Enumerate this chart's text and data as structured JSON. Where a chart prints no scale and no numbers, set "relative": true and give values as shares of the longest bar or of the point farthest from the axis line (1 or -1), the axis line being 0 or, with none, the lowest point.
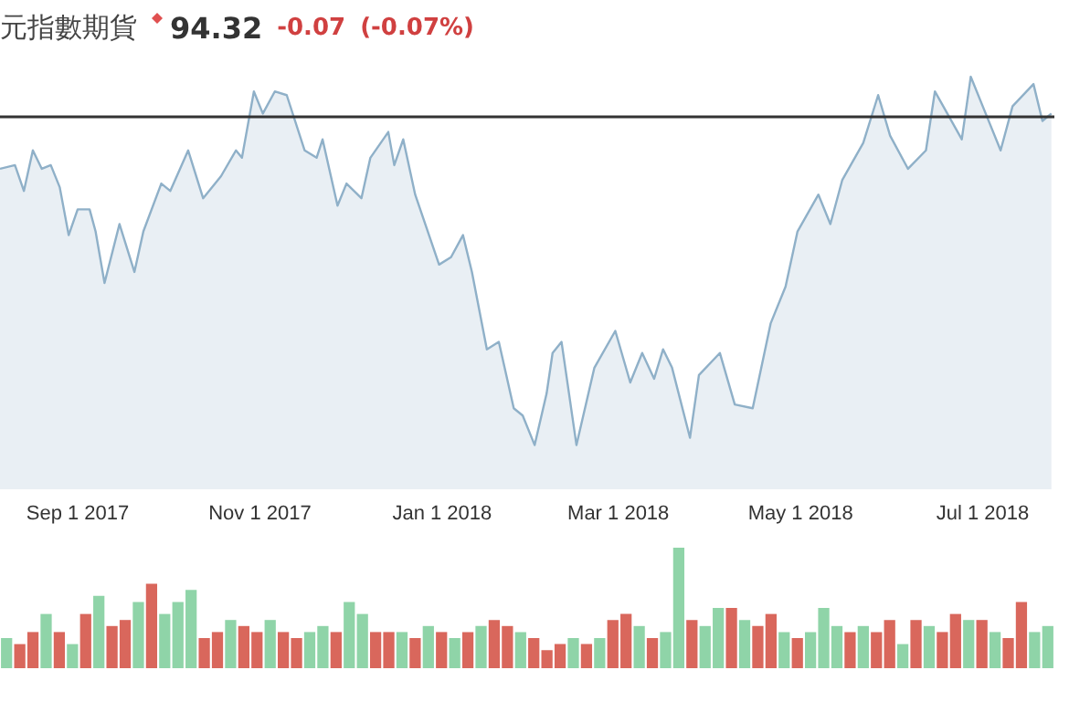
{
  "chart_data": [
    {
      "type": "area",
      "title": "元指數期貨",
      "annotations": [
        "94.32",
        "-0.07",
        "(-0.07%)"
      ],
      "relative": true,
      "color": "#8fb0c8",
      "x": [
        "2017-08-06",
        "2017-08-11",
        "2017-08-14",
        "2017-08-17",
        "2017-08-20",
        "2017-08-23",
        "2017-08-26",
        "2017-08-29",
        "2017-09-01",
        "2017-09-05",
        "2017-09-07",
        "2017-09-10",
        "2017-09-15",
        "2017-09-20",
        "2017-09-23",
        "2017-09-29",
        "2017-10-02",
        "2017-10-08",
        "2017-10-13",
        "2017-10-19",
        "2017-10-24",
        "2017-10-26",
        "2017-10-30",
        "2017-11-02",
        "2017-11-06",
        "2017-11-10",
        "2017-11-16",
        "2017-11-20",
        "2017-11-22",
        "2017-11-27",
        "2017-11-30",
        "2017-12-05",
        "2017-12-08",
        "2017-12-14",
        "2017-12-16",
        "2017-12-19",
        "2017-12-23",
        "2017-12-31",
        "2018-01-04",
        "2018-01-08",
        "2018-01-11",
        "2018-01-16",
        "2018-01-20",
        "2018-01-25",
        "2018-01-28",
        "2018-02-01",
        "2018-02-05",
        "2018-02-07",
        "2018-02-10",
        "2018-02-15",
        "2018-02-21",
        "2018-02-28",
        "2018-03-05",
        "2018-03-09",
        "2018-03-13",
        "2018-03-16",
        "2018-03-19",
        "2018-03-25",
        "2018-03-28",
        "2018-04-04",
        "2018-04-09",
        "2018-04-15",
        "2018-04-21",
        "2018-04-26",
        "2018-04-30",
        "2018-05-07",
        "2018-05-11",
        "2018-05-15",
        "2018-05-22",
        "2018-05-27",
        "2018-05-31",
        "2018-06-06",
        "2018-06-12",
        "2018-06-15",
        "2018-06-24",
        "2018-06-27",
        "2018-07-02",
        "2018-07-07",
        "2018-07-11",
        "2018-07-18",
        "2018-07-21",
        "2018-07-24"
      ],
      "values": [
        0.75,
        0.76,
        0.69,
        0.8,
        0.75,
        0.76,
        0.7,
        0.57,
        0.64,
        0.64,
        0.58,
        0.44,
        0.6,
        0.47,
        0.58,
        0.71,
        0.69,
        0.8,
        0.67,
        0.73,
        0.8,
        0.78,
        0.96,
        0.9,
        0.96,
        0.95,
        0.8,
        0.78,
        0.83,
        0.65,
        0.71,
        0.67,
        0.78,
        0.85,
        0.76,
        0.83,
        0.68,
        0.49,
        0.51,
        0.57,
        0.47,
        0.26,
        0.28,
        0.1,
        0.08,
        0,
        0.14,
        0.25,
        0.28,
        0,
        0.21,
        0.31,
        0.17,
        0.25,
        0.18,
        0.26,
        0.21,
        0.02,
        0.19,
        0.25,
        0.11,
        0.1,
        0.33,
        0.43,
        0.58,
        0.68,
        0.6,
        0.72,
        0.82,
        0.95,
        0.84,
        0.75,
        0.8,
        0.96,
        0.83,
        1,
        0.9,
        0.8,
        0.92,
        0.98,
        0.88,
        0.9
      ],
      "xlim": [
        "2017-08-06",
        "2018-07-25"
      ],
      "xticks": [
        {
          "value": "2017-09-01",
          "label": "Sep 1 2017"
        },
        {
          "value": "2017-11-01",
          "label": "Nov 1 2017"
        },
        {
          "value": "2018-01-01",
          "label": "Jan 1 2018"
        },
        {
          "value": "2018-03-01",
          "label": "Mar 1 2018"
        },
        {
          "value": "2018-05-01",
          "label": "May 1 2018"
        },
        {
          "value": "2018-07-01",
          "label": "Jul 1 2018"
        }
      ],
      "ref_lines": [
        {
          "axis": "y",
          "value": 0.89,
          "color": "#333333"
        }
      ]
    },
    {
      "type": "bar",
      "relative": true,
      "categories": [
        null,
        null,
        null,
        null,
        null,
        null,
        null,
        null,
        null,
        null,
        null,
        null,
        null,
        null,
        null,
        null,
        null,
        null,
        null,
        null,
        null,
        null,
        null,
        null,
        null,
        null,
        null,
        null,
        null,
        null,
        null,
        null,
        null,
        null,
        null,
        null,
        null,
        null,
        null,
        null,
        null,
        null,
        null,
        null,
        null,
        null,
        null,
        null,
        null,
        null,
        null,
        null,
        null,
        null,
        null,
        null,
        null,
        null,
        null,
        null,
        null,
        null,
        null,
        null,
        null,
        null,
        null,
        null,
        null,
        null,
        null,
        null,
        null,
        null,
        null,
        null,
        null,
        null,
        null,
        null
      ],
      "values": [
        0.25,
        0.2,
        0.3,
        0.45,
        0.3,
        0.2,
        0.45,
        0.6,
        0.35,
        0.4,
        0.55,
        0.7,
        0.45,
        0.55,
        0.65,
        0.25,
        0.3,
        0.4,
        0.35,
        0.3,
        0.4,
        0.3,
        0.25,
        0.3,
        0.35,
        0.3,
        0.55,
        0.45,
        0.3,
        0.3,
        0.3,
        0.25,
        0.35,
        0.3,
        0.25,
        0.3,
        0.35,
        0.4,
        0.35,
        0.3,
        0.25,
        0.15,
        0.2,
        0.25,
        0.2,
        0.25,
        0.4,
        0.45,
        0.35,
        0.25,
        0.3,
        1.0,
        0.4,
        0.35,
        0.5,
        0.5,
        0.4,
        0.35,
        0.45,
        0.3,
        0.25,
        0.3,
        0.5,
        0.35,
        0.3,
        0.35,
        0.3,
        0.4,
        0.2,
        0.4,
        0.35,
        0.3,
        0.45,
        0.4,
        0.4,
        0.3,
        0.25,
        0.55,
        0.3,
        0.35
      ],
      "colors": [
        "#8fd4a8",
        "#d9675c",
        "#d9675c",
        "#8fd4a8",
        "#d9675c",
        "#8fd4a8",
        "#d9675c",
        "#8fd4a8",
        "#d9675c",
        "#d9675c",
        "#8fd4a8",
        "#d9675c",
        "#8fd4a8",
        "#8fd4a8",
        "#8fd4a8",
        "#d9675c",
        "#d9675c",
        "#8fd4a8",
        "#d9675c",
        "#d9675c",
        "#8fd4a8",
        "#d9675c",
        "#d9675c",
        "#8fd4a8",
        "#8fd4a8",
        "#d9675c",
        "#8fd4a8",
        "#8fd4a8",
        "#d9675c",
        "#d9675c",
        "#8fd4a8",
        "#d9675c",
        "#8fd4a8",
        "#d9675c",
        "#8fd4a8",
        "#d9675c",
        "#8fd4a8",
        "#d9675c",
        "#d9675c",
        "#8fd4a8",
        "#d9675c",
        "#d9675c",
        "#d9675c",
        "#8fd4a8",
        "#d9675c",
        "#8fd4a8",
        "#d9675c",
        "#d9675c",
        "#8fd4a8",
        "#d9675c",
        "#8fd4a8",
        "#8fd4a8",
        "#d9675c",
        "#8fd4a8",
        "#8fd4a8",
        "#d9675c",
        "#8fd4a8",
        "#d9675c",
        "#d9675c",
        "#8fd4a8",
        "#d9675c",
        "#8fd4a8",
        "#8fd4a8",
        "#8fd4a8",
        "#d9675c",
        "#8fd4a8",
        "#d9675c",
        "#d9675c",
        "#8fd4a8",
        "#d9675c",
        "#8fd4a8",
        "#d9675c",
        "#d9675c",
        "#8fd4a8",
        "#d9675c",
        "#8fd4a8",
        "#d9675c",
        "#d9675c",
        "#8fd4a8",
        "#8fd4a8"
      ]
    }
  ]
}
